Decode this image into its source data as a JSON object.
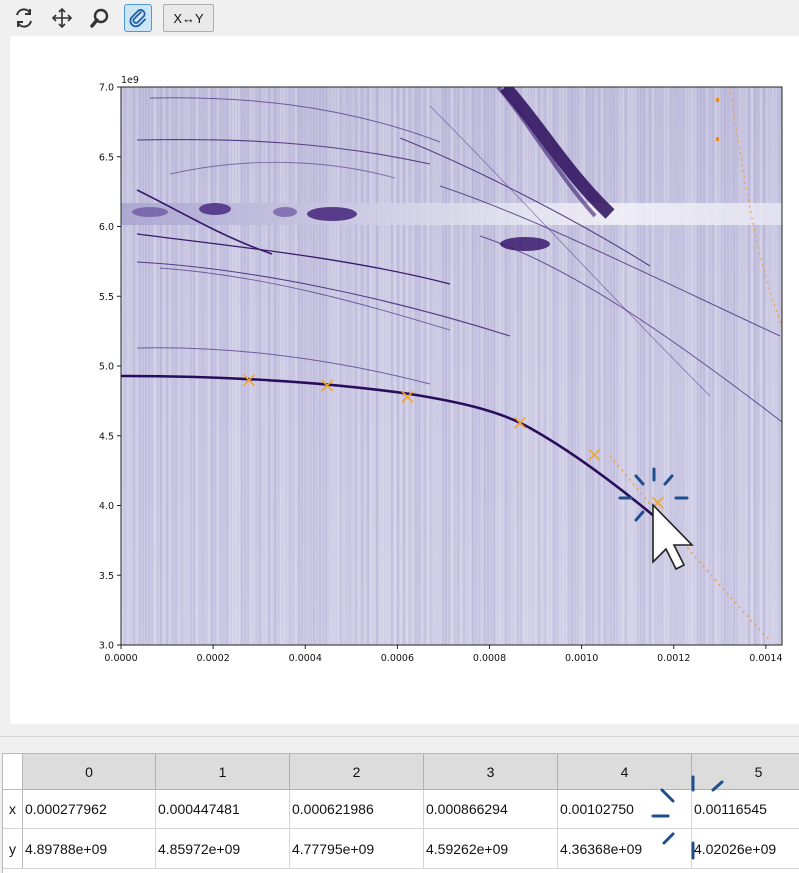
{
  "toolbar": {
    "buttons": [
      {
        "icon": "reset-icon"
      },
      {
        "icon": "pan-icon"
      },
      {
        "icon": "zoom-icon"
      },
      {
        "icon": "paperclip-icon",
        "active": true
      }
    ],
    "swap_label": "X↔Y"
  },
  "chart_data": {
    "type": "heatmap",
    "colormap": "Purples",
    "x_tick_labels": [
      "0.0000",
      "0.0002",
      "0.0004",
      "0.0006",
      "0.0008",
      "0.0010",
      "0.0012",
      "0.0014"
    ],
    "x_ticks": [
      0,
      0.0002,
      0.0004,
      0.0006,
      0.0008,
      0.001,
      0.0012,
      0.0014
    ],
    "y_tick_labels": [
      "3.0",
      "3.5",
      "4.0",
      "4.5",
      "5.0",
      "5.5",
      "6.0",
      "6.5",
      "7.0"
    ],
    "y_ticks": [
      3000000000.0,
      3500000000.0,
      4000000000.0,
      4500000000.0,
      5000000000.0,
      5500000000.0,
      6000000000.0,
      6500000000.0,
      7000000000.0
    ],
    "y_offset_label": "1e9",
    "xlim": [
      0,
      0.001435
    ],
    "ylim": [
      3000000000.0,
      7000000000.0
    ],
    "marker_color": "#f5a623",
    "markers": [
      {
        "x": 0.000277962,
        "y": 4897880000.0
      },
      {
        "x": 0.000447481,
        "y": 4859720000.0
      },
      {
        "x": 0.000621986,
        "y": 4777950000.0
      },
      {
        "x": 0.000866294,
        "y": 4592620000.0
      },
      {
        "x": 0.0010275,
        "y": 4363680000.0
      },
      {
        "x": 0.00116545,
        "y": 4020260000.0
      }
    ]
  },
  "table": {
    "columns": [
      "0",
      "1",
      "2",
      "3",
      "4",
      "5"
    ],
    "rows": [
      {
        "header": "x",
        "cells": [
          "0.000277962",
          "0.000447481",
          "0.000621986",
          "0.000866294",
          "0.00102750",
          "0.00116545"
        ]
      },
      {
        "header": "y",
        "cells": [
          "4.89788e+09",
          "4.85972e+09",
          "4.77795e+09",
          "4.59262e+09",
          "4.36368e+09",
          "4.02026e+09"
        ]
      }
    ]
  },
  "colors": {
    "accent": "#1f5fa6",
    "heatmap_base": "#c9c7e0",
    "heatmap_dark": "#3b1a6e"
  }
}
